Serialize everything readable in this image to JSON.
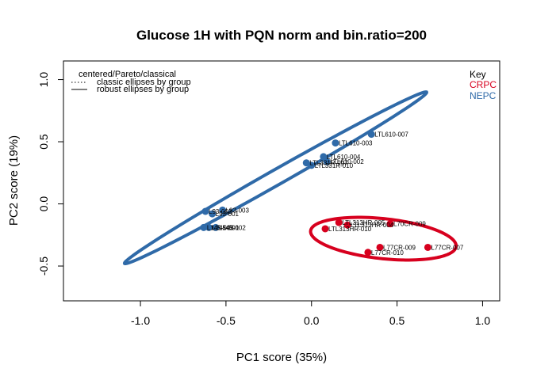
{
  "chart_data": {
    "type": "scatter",
    "title": "Glucose 1H with PQN norm and bin.ratio=200",
    "xlabel": "PC1 score (35%)",
    "ylabel": "PC2 score (19%)",
    "xlim": [
      -1.45,
      1.1
    ],
    "ylim": [
      -0.78,
      1.15
    ],
    "xticks": [
      "-1.0",
      "-0.5",
      "0.0",
      "0.5",
      "1.0"
    ],
    "xtick_values": [
      -1.0,
      -0.5,
      0.0,
      0.5,
      1.0
    ],
    "yticks": [
      "-0.5",
      "0.0",
      "0.5",
      "1.0"
    ],
    "ytick_values": [
      -0.5,
      0.0,
      0.5,
      1.0
    ],
    "grid": false,
    "legend_lines": {
      "header": "centered/Pareto/classical",
      "classic": "classic ellipses by group",
      "robust": "robust ellipses by group"
    },
    "key": {
      "title": "Key",
      "groups": [
        {
          "name": "CRPC",
          "color": "#d7001e"
        },
        {
          "name": "NEPC",
          "color": "#2f6aa8"
        }
      ]
    },
    "series": [
      {
        "name": "CRPC",
        "color": "#d7001e",
        "points": [
          {
            "x": 0.16,
            "y": -0.15,
            "label": "LTL313HR-005"
          },
          {
            "x": 0.21,
            "y": -0.17,
            "label": "LTL313HR-004"
          },
          {
            "x": 0.46,
            "y": -0.16,
            "label": "L70CR-009"
          },
          {
            "x": 0.08,
            "y": -0.2,
            "label": "LTL313HR-010"
          },
          {
            "x": 0.4,
            "y": -0.35,
            "label": "L77CR-009"
          },
          {
            "x": 0.68,
            "y": -0.35,
            "label": "L77CR-007"
          },
          {
            "x": 0.33,
            "y": -0.39,
            "label": "L77CR-010"
          }
        ],
        "ellipse": {
          "cx": 0.42,
          "cy": -0.28,
          "rx": 0.43,
          "ry": 0.16,
          "angle_deg": -9
        }
      },
      {
        "name": "NEPC",
        "color": "#2f6aa8",
        "points": [
          {
            "x": 0.35,
            "y": 0.56,
            "label": "LTL610-007"
          },
          {
            "x": 0.14,
            "y": 0.49,
            "label": "LTL610-003"
          },
          {
            "x": 0.07,
            "y": 0.38,
            "label": "LTL610-004"
          },
          {
            "x": 0.09,
            "y": 0.34,
            "label": "LTL610-002"
          },
          {
            "x": -0.03,
            "y": 0.33,
            "label": "LTL331R-007"
          },
          {
            "x": 0.0,
            "y": 0.31,
            "label": "LTL331R-010"
          },
          {
            "x": -0.52,
            "y": -0.05,
            "label": "L93-003"
          },
          {
            "x": -0.62,
            "y": -0.06,
            "label": "L93-002"
          },
          {
            "x": -0.58,
            "y": -0.08,
            "label": "L93-001"
          },
          {
            "x": -0.63,
            "y": -0.19,
            "label": "L145-003"
          },
          {
            "x": -0.56,
            "y": -0.19,
            "label": "L145-002"
          },
          {
            "x": -0.6,
            "y": -0.19,
            "label": "L145-001"
          }
        ],
        "ellipse": {
          "cx": -0.21,
          "cy": 0.21,
          "rx": 1.12,
          "ry": 0.055,
          "angle_deg": 38
        }
      }
    ]
  }
}
